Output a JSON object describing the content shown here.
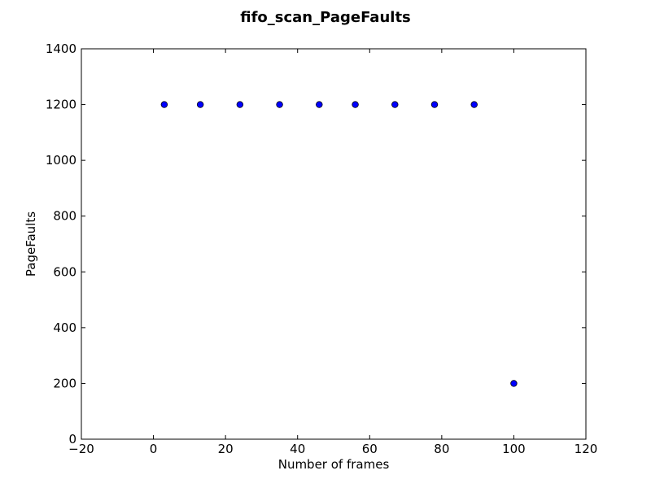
{
  "chart_data": {
    "type": "scatter",
    "title": "fifo_scan_PageFaults",
    "xlabel": "Number of frames",
    "ylabel": "PageFaults",
    "xlim": [
      -20,
      120
    ],
    "ylim": [
      0,
      1400
    ],
    "xticks": [
      -20,
      0,
      20,
      40,
      60,
      80,
      100,
      120
    ],
    "yticks": [
      0,
      200,
      400,
      600,
      800,
      1000,
      1200,
      1400
    ],
    "xtick_labels": [
      "−20",
      "0",
      "20",
      "40",
      "60",
      "80",
      "100",
      "120"
    ],
    "ytick_labels": [
      "0",
      "200",
      "400",
      "600",
      "800",
      "1000",
      "1200",
      "1400"
    ],
    "grid": false,
    "marker_color": "#0000ff",
    "series": [
      {
        "x": [
          3,
          13,
          24,
          35,
          46,
          56,
          67,
          78,
          89,
          100
        ],
        "y": [
          1200,
          1200,
          1200,
          1200,
          1200,
          1200,
          1200,
          1200,
          1200,
          200
        ]
      }
    ]
  }
}
